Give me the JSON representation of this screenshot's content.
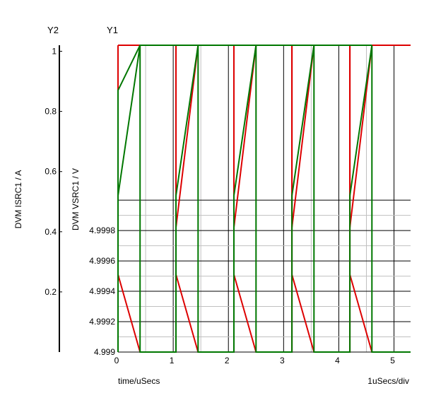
{
  "chart_data": {
    "type": "line",
    "y2_title": "Y2",
    "y1_title": "Y1",
    "y2_label": "DVM ISRC1 / A",
    "y1_label": "DVM VSRC1 / V",
    "xlabel": "time/uSecs",
    "x_scale_note": "1uSecs/div",
    "xlim": [
      0,
      5.3
    ],
    "y1lim": [
      4.999,
      5.00102
    ],
    "y2lim": [
      0,
      1.02
    ],
    "x_ticks": [
      "0",
      "1",
      "2",
      "3",
      "4",
      "5"
    ],
    "y1_ticks": [
      "4.999",
      "4.9992",
      "4.9994",
      "4.9996",
      "4.9998"
    ],
    "y2_ticks": [
      "0.2",
      "0.4",
      "0.6",
      "0.8",
      "1"
    ],
    "series": [
      {
        "color": "#dd0000",
        "axis": "y1",
        "x": [
          0,
          0,
          0,
          0.4,
          1.05,
          1.05,
          1.05,
          1.45,
          2.1,
          2.1,
          2.1,
          2.5,
          3.15,
          3.15,
          3.15,
          3.55,
          4.2,
          4.2,
          4.2,
          4.6,
          5.3
        ],
        "y": [
          4.99982,
          5.00102,
          4.99951,
          4.999,
          4.999,
          5.00102,
          4.99951,
          4.999,
          4.999,
          5.00102,
          4.99951,
          4.999,
          4.999,
          5.00102,
          4.99951,
          4.999,
          4.999,
          5.00102,
          4.99951,
          4.999,
          4.999
        ]
      },
      {
        "color": "#dd0000",
        "axis": "y1",
        "x": [
          0,
          0.4,
          1.05,
          1.05,
          1.45,
          2.1,
          2.1,
          2.5,
          3.15,
          3.15,
          3.55,
          4.2,
          4.2,
          4.6,
          5.3
        ],
        "y": [
          5.00102,
          5.00102,
          5.00102,
          4.99982,
          5.00102,
          5.00102,
          4.99982,
          5.00102,
          5.00102,
          4.99982,
          5.00102,
          5.00102,
          4.99982,
          5.00102,
          5.00102
        ]
      },
      {
        "color": "#007700",
        "axis": "y2",
        "x": [
          0,
          0,
          0.4,
          0.4,
          1.05,
          1.05,
          1.45,
          1.45,
          2.1,
          2.1,
          2.5,
          2.5,
          3.15,
          3.15,
          3.55,
          3.55,
          4.2,
          4.2,
          4.6,
          4.6,
          5.3
        ],
        "y": [
          0.87,
          0.52,
          1.02,
          0,
          0,
          0.52,
          1.02,
          0,
          0,
          0.52,
          1.02,
          0,
          0,
          0.52,
          1.02,
          0,
          0,
          0.52,
          1.02,
          0,
          0
        ]
      },
      {
        "color": "#007700",
        "axis": "y2",
        "x": [
          0,
          0,
          0.4,
          1.45,
          2.5,
          3.55,
          4.6
        ],
        "y": [
          0,
          0.87,
          1.02,
          1.02,
          1.02,
          1.02,
          1.02
        ]
      }
    ]
  }
}
